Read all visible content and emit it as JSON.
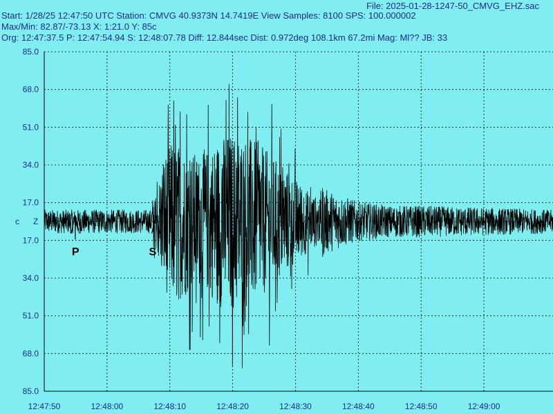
{
  "header": {
    "file": "File: 2025-01-28-1247-50_CMVG_EHZ.sac",
    "line1": "Start: 1/28/25 12:47:50 UTC Station: CMVG 40.9373N 14.7419E View Samples: 8100  SPS: 100.000002",
    "line2": "Max/Min: 82.87/-73.13 X: 1:21.0 Y: 85c",
    "line3": "Org: 12:47:37.5 P: 12:47:54.94 S: 12:48:07.78 Diff: 12.844sec Dist: 0.972deg 108.1km 67.2mi  Mag: Ml?? JB: 33"
  },
  "channel": {
    "component": "c",
    "axis": "Z"
  },
  "markers": {
    "p": "P",
    "s": "S"
  },
  "colors": {
    "background": "#80eef0",
    "grid": "#000000",
    "trace": "#000000",
    "text": "#1a2a8a"
  },
  "chart_data": {
    "type": "line",
    "title": "",
    "xlabel": "",
    "ylabel": "",
    "x_ticks": [
      "12:47:50",
      "12:48:00",
      "12:48:10",
      "12:48:20",
      "12:48:30",
      "12:48:40",
      "12:48:50",
      "12:49:00"
    ],
    "y_ticks": [
      "85.0",
      "68.0",
      "51.0",
      "34.0",
      "17.0",
      "17.0",
      "34.0",
      "51.0",
      "68.0",
      "85.0"
    ],
    "ylim": [
      -85,
      85
    ],
    "xlim_seconds": [
      0,
      81
    ],
    "grid": true,
    "phase_picks": {
      "P_seconds": 4.94,
      "S_seconds": 17.78
    },
    "envelope_seconds": [
      0,
      4,
      17,
      18,
      19,
      20,
      22,
      25,
      28,
      30,
      32,
      34,
      36,
      39,
      42,
      45,
      50,
      55,
      60,
      70,
      81
    ],
    "envelope_amplitude": [
      6,
      6,
      6,
      30,
      60,
      72,
      70,
      60,
      78,
      82,
      80,
      72,
      62,
      45,
      28,
      16,
      10,
      8,
      8,
      7,
      6
    ]
  }
}
